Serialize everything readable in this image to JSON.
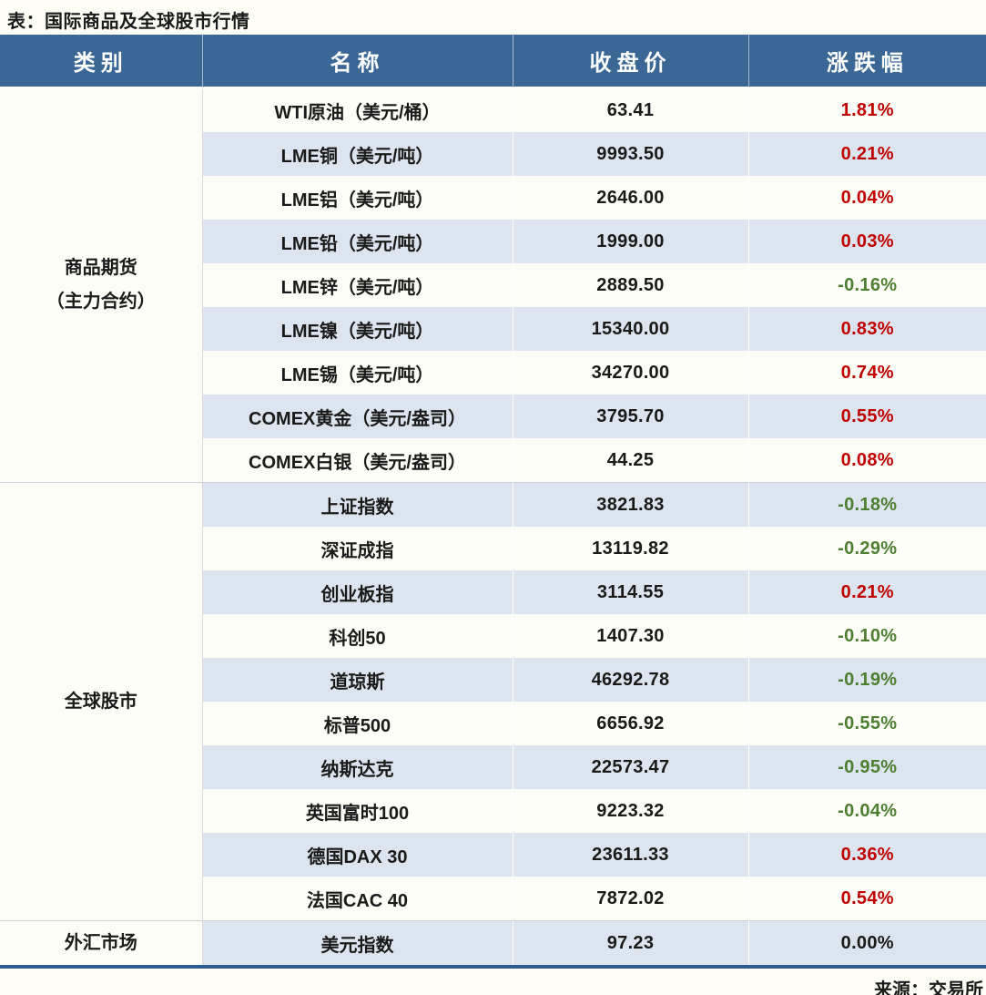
{
  "page": {
    "title": "表：国际商品及全球股市行情",
    "source": "来源：交易所"
  },
  "colors": {
    "header_bg": "#3a6795",
    "stripe_blue": "#dce5ef",
    "up_red": "#c00000",
    "down_green": "#4e7e2f",
    "flat_black": "#1a1a1a",
    "bottom_border_blue": "#2d5d90"
  },
  "table": {
    "headers": [
      "类别",
      "名称",
      "收盘价",
      "涨跌幅"
    ],
    "sections": [
      {
        "category_lines": [
          "商品期货",
          "（主力合约）"
        ],
        "rows": [
          {
            "name": "WTI原油（美元/桶）",
            "close": "63.41",
            "change": "1.81%",
            "direction": "up"
          },
          {
            "name": "LME铜（美元/吨）",
            "close": "9993.50",
            "change": "0.21%",
            "direction": "up"
          },
          {
            "name": "LME铝（美元/吨）",
            "close": "2646.00",
            "change": "0.04%",
            "direction": "up"
          },
          {
            "name": "LME铅（美元/吨）",
            "close": "1999.00",
            "change": "0.03%",
            "direction": "up"
          },
          {
            "name": "LME锌（美元/吨）",
            "close": "2889.50",
            "change": "-0.16%",
            "direction": "down"
          },
          {
            "name": "LME镍（美元/吨）",
            "close": "15340.00",
            "change": "0.83%",
            "direction": "up"
          },
          {
            "name": "LME锡（美元/吨）",
            "close": "34270.00",
            "change": "0.74%",
            "direction": "up"
          },
          {
            "name": "COMEX黄金（美元/盎司）",
            "close": "3795.70",
            "change": "0.55%",
            "direction": "up"
          },
          {
            "name": "COMEX白银（美元/盎司）",
            "close": "44.25",
            "change": "0.08%",
            "direction": "up"
          }
        ]
      },
      {
        "category_lines": [
          "全球股市"
        ],
        "rows": [
          {
            "name": "上证指数",
            "close": "3821.83",
            "change": "-0.18%",
            "direction": "down"
          },
          {
            "name": "深证成指",
            "close": "13119.82",
            "change": "-0.29%",
            "direction": "down"
          },
          {
            "name": "创业板指",
            "close": "3114.55",
            "change": "0.21%",
            "direction": "up"
          },
          {
            "name": "科创50",
            "close": "1407.30",
            "change": "-0.10%",
            "direction": "down"
          },
          {
            "name": "道琼斯",
            "close": "46292.78",
            "change": "-0.19%",
            "direction": "down"
          },
          {
            "name": "标普500",
            "close": "6656.92",
            "change": "-0.55%",
            "direction": "down"
          },
          {
            "name": "纳斯达克",
            "close": "22573.47",
            "change": "-0.95%",
            "direction": "down"
          },
          {
            "name": "英国富时100",
            "close": "9223.32",
            "change": "-0.04%",
            "direction": "down"
          },
          {
            "name": "德国DAX 30",
            "close": "23611.33",
            "change": "0.36%",
            "direction": "up"
          },
          {
            "name": "法国CAC 40",
            "close": "7872.02",
            "change": "0.54%",
            "direction": "up"
          }
        ]
      },
      {
        "category_lines": [
          "外汇市场"
        ],
        "rows": [
          {
            "name": "美元指数",
            "close": "97.23",
            "change": "0.00%",
            "direction": "flat"
          }
        ]
      }
    ]
  },
  "chart_data": {
    "type": "table",
    "title": "表：国际商品及全球股市行情",
    "columns": [
      "类别",
      "名称",
      "收盘价",
      "涨跌幅"
    ],
    "rows": [
      [
        "商品期货（主力合约）",
        "WTI原油（美元/桶）",
        63.41,
        "1.81%"
      ],
      [
        "商品期货（主力合约）",
        "LME铜（美元/吨）",
        9993.5,
        "0.21%"
      ],
      [
        "商品期货（主力合约）",
        "LME铝（美元/吨）",
        2646.0,
        "0.04%"
      ],
      [
        "商品期货（主力合约）",
        "LME铅（美元/吨）",
        1999.0,
        "0.03%"
      ],
      [
        "商品期货（主力合约）",
        "LME锌（美元/吨）",
        2889.5,
        "-0.16%"
      ],
      [
        "商品期货（主力合约）",
        "LME镍（美元/吨）",
        15340.0,
        "0.83%"
      ],
      [
        "商品期货（主力合约）",
        "LME锡（美元/吨）",
        34270.0,
        "0.74%"
      ],
      [
        "商品期货（主力合约）",
        "COMEX黄金（美元/盎司）",
        3795.7,
        "0.55%"
      ],
      [
        "商品期货（主力合约）",
        "COMEX白银（美元/盎司）",
        44.25,
        "0.08%"
      ],
      [
        "全球股市",
        "上证指数",
        3821.83,
        "-0.18%"
      ],
      [
        "全球股市",
        "深证成指",
        13119.82,
        "-0.29%"
      ],
      [
        "全球股市",
        "创业板指",
        3114.55,
        "0.21%"
      ],
      [
        "全球股市",
        "科创50",
        1407.3,
        "-0.10%"
      ],
      [
        "全球股市",
        "道琼斯",
        46292.78,
        "-0.19%"
      ],
      [
        "全球股市",
        "标普500",
        6656.92,
        "-0.55%"
      ],
      [
        "全球股市",
        "纳斯达克",
        22573.47,
        "-0.95%"
      ],
      [
        "全球股市",
        "英国富时100",
        9223.32,
        "-0.04%"
      ],
      [
        "全球股市",
        "德国DAX 30",
        23611.33,
        "0.36%"
      ],
      [
        "全球股市",
        "法国CAC 40",
        7872.02,
        "0.54%"
      ],
      [
        "外汇市场",
        "美元指数",
        97.23,
        "0.00%"
      ]
    ],
    "source": "来源：交易所",
    "color_coding": {
      "positive": "red #c00000",
      "negative": "green #4e7e2f",
      "zero": "black"
    }
  }
}
